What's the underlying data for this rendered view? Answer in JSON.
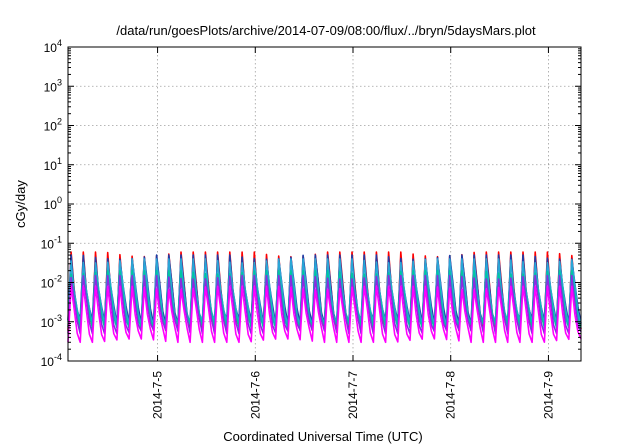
{
  "chart_data": {
    "type": "line",
    "title": "/data/run/goesPlots/archive/2014-07-09/08:00/flux/../bryn/5daysMars.plot",
    "xlabel": "Coordinated Universal Time (UTC)",
    "ylabel": "cGy/day",
    "yscale": "log",
    "ylim": [
      0.0001,
      10000
    ],
    "xlim": [
      "2014-07-04 02:00",
      "2014-07-09 08:00"
    ],
    "x_ticks": [
      "2014-7-5",
      "2014-7-6",
      "2014-7-7",
      "2014-7-8",
      "2014-7-9"
    ],
    "y_ticks": [
      {
        "base": "10",
        "exp": "-4"
      },
      {
        "base": "10",
        "exp": "-3"
      },
      {
        "base": "10",
        "exp": "-2"
      },
      {
        "base": "10",
        "exp": "-1"
      },
      {
        "base": "10",
        "exp": "0"
      },
      {
        "base": "10",
        "exp": "1"
      },
      {
        "base": "10",
        "exp": "2"
      },
      {
        "base": "10",
        "exp": "3"
      },
      {
        "base": "10",
        "exp": "4"
      }
    ],
    "grid": true,
    "pattern": "sawtooth",
    "sawtooth_period_hours": 3,
    "series": [
      {
        "color": "#ff0000",
        "min": 0.0006,
        "max": 0.06
      },
      {
        "color": "#1f3ea8",
        "min": 0.0009,
        "max": 0.05
      },
      {
        "color": "#2aa6d6",
        "min": 0.0008,
        "max": 0.04
      },
      {
        "color": "#00c8a0",
        "min": 0.0007,
        "max": 0.02
      },
      {
        "color": "#8a2be2",
        "min": 0.0005,
        "max": 0.015
      },
      {
        "color": "#ff00ff",
        "min": 0.0003,
        "max": 0.008
      }
    ]
  }
}
